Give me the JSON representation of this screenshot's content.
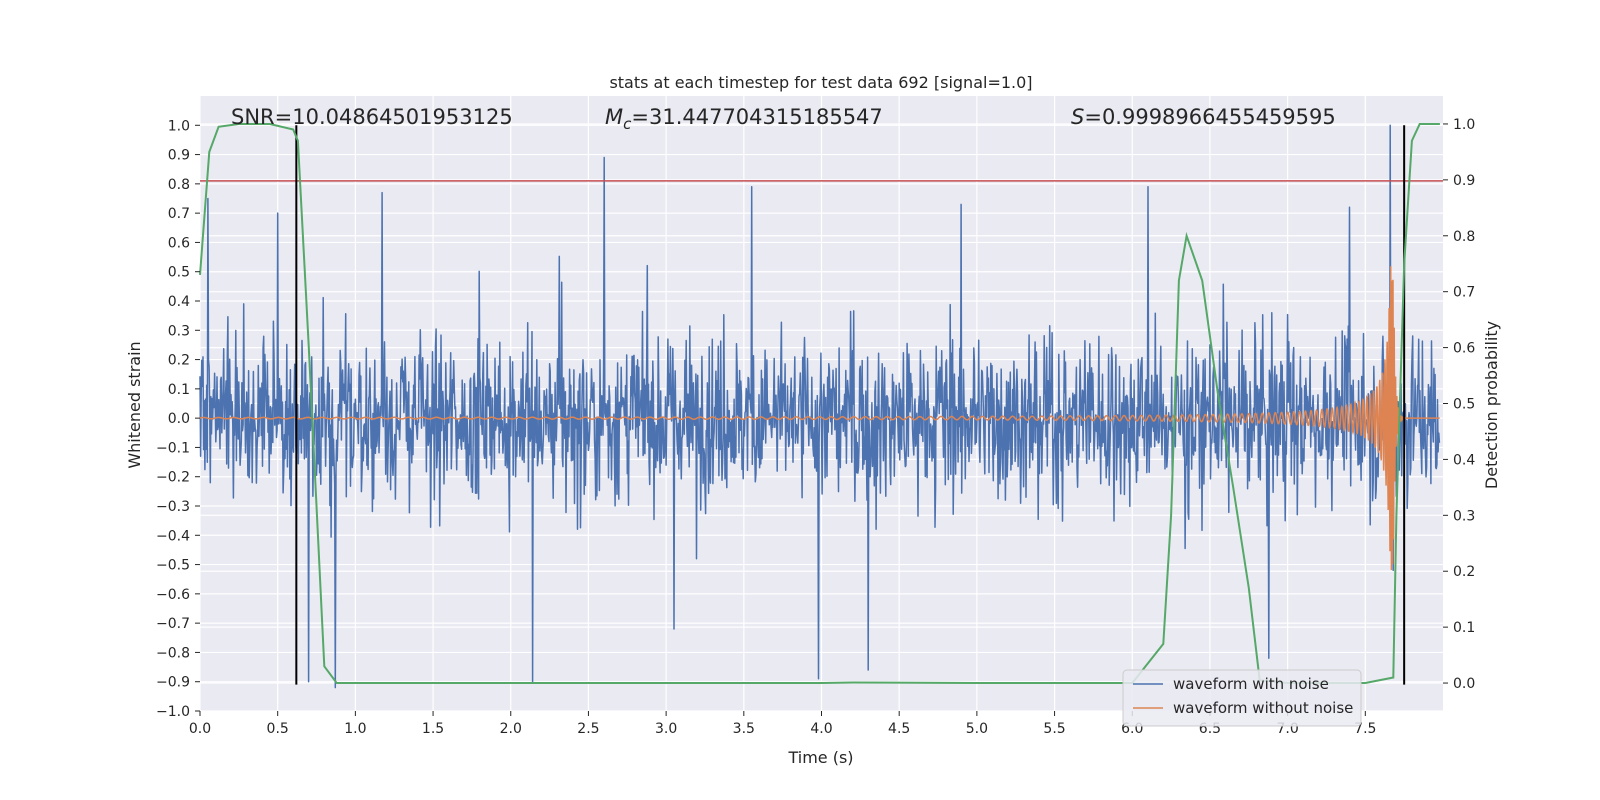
{
  "chart_data": {
    "type": "line",
    "title": "stats at each timestep for test data 692 [signal=1.0]",
    "xlabel": "Time (s)",
    "ylabel": "Whitened strain",
    "ylabel_right": "Detection probability",
    "xlim": [
      0.0,
      8.0
    ],
    "ylim": [
      -1.0,
      1.1
    ],
    "ylim_right": [
      -0.05,
      1.05
    ],
    "x_ticks": [
      "0.0",
      "0.5",
      "1.0",
      "1.5",
      "2.0",
      "2.5",
      "3.0",
      "3.5",
      "4.0",
      "4.5",
      "5.0",
      "5.5",
      "6.0",
      "6.5",
      "7.0",
      "7.5"
    ],
    "y_ticks": [
      "-1.0",
      "-0.9",
      "-0.8",
      "-0.7",
      "-0.6",
      "-0.5",
      "-0.4",
      "-0.3",
      "-0.2",
      "-0.1",
      "0.0",
      "0.1",
      "0.2",
      "0.3",
      "0.4",
      "0.5",
      "0.6",
      "0.7",
      "0.8",
      "0.9",
      "1.0"
    ],
    "y_right_ticks": [
      "0.0",
      "0.1",
      "0.2",
      "0.3",
      "0.4",
      "0.5",
      "0.6",
      "0.7",
      "0.8",
      "0.9",
      "1.0"
    ],
    "grid": true,
    "annotations": {
      "snr": "SNR=10.04864501953125",
      "mc": "=31.447704315185547",
      "s": "=0.9998966455459595"
    },
    "horizontal_lines": [
      {
        "y": 0.81,
        "color": "#c44e52"
      }
    ],
    "vertical_lines": [
      {
        "x": 0.62,
        "ymin": -0.91,
        "ymax": 1.0
      },
      {
        "x": 7.75,
        "ymin": -0.91,
        "ymax": 1.0
      }
    ],
    "series": [
      {
        "name": "waveform with noise",
        "color": "#4c72b0",
        "style": "dense_noise",
        "sample_rate_hz": 256,
        "core_amplitude": 0.34,
        "peaks": [
          {
            "x": 0.05,
            "y": 0.75
          },
          {
            "x": 0.5,
            "y": 0.7
          },
          {
            "x": 0.7,
            "y": -0.9
          },
          {
            "x": 0.87,
            "y": -0.92
          },
          {
            "x": 1.17,
            "y": 0.77
          },
          {
            "x": 2.14,
            "y": -0.9
          },
          {
            "x": 2.6,
            "y": 0.89
          },
          {
            "x": 3.05,
            "y": -0.72
          },
          {
            "x": 3.55,
            "y": 0.79
          },
          {
            "x": 3.98,
            "y": -0.89
          },
          {
            "x": 4.3,
            "y": -0.86
          },
          {
            "x": 4.9,
            "y": 0.73
          },
          {
            "x": 6.1,
            "y": 0.79
          },
          {
            "x": 6.88,
            "y": -0.82
          },
          {
            "x": 7.4,
            "y": 0.72
          },
          {
            "x": 7.66,
            "y": 1.0
          },
          {
            "x": 7.68,
            "y": -0.52
          }
        ]
      },
      {
        "name": "waveform without noise",
        "color": "#dd8452",
        "style": "chirp",
        "t_merger": 7.68,
        "peak_amplitude": 0.52
      },
      {
        "name": "Detection probability",
        "color": "#55a868",
        "axis": "right",
        "x": [
          0.0,
          0.06,
          0.12,
          0.25,
          0.45,
          0.6,
          0.63,
          0.7,
          0.8,
          0.88,
          1.0,
          2.0,
          3.0,
          4.0,
          4.2,
          5.0,
          6.0,
          6.2,
          6.25,
          6.3,
          6.35,
          6.45,
          6.55,
          6.65,
          6.75,
          6.82,
          7.0,
          7.5,
          7.68,
          7.7,
          7.75,
          7.8,
          7.85,
          7.9,
          7.95,
          7.98
        ],
        "values": [
          0.73,
          0.95,
          0.995,
          1.0,
          1.0,
          0.99,
          0.97,
          0.6,
          0.03,
          0.0,
          0.0,
          0.0,
          0.0,
          0.0,
          0.001,
          0.0,
          0.0,
          0.07,
          0.3,
          0.72,
          0.8,
          0.72,
          0.52,
          0.35,
          0.17,
          0.005,
          0.0,
          0.0,
          0.01,
          0.3,
          0.75,
          0.97,
          1.0,
          1.0,
          1.0,
          1.0
        ]
      }
    ],
    "legend": {
      "placement": "lower-right",
      "entries": [
        "waveform with noise",
        "waveform without noise"
      ]
    }
  }
}
